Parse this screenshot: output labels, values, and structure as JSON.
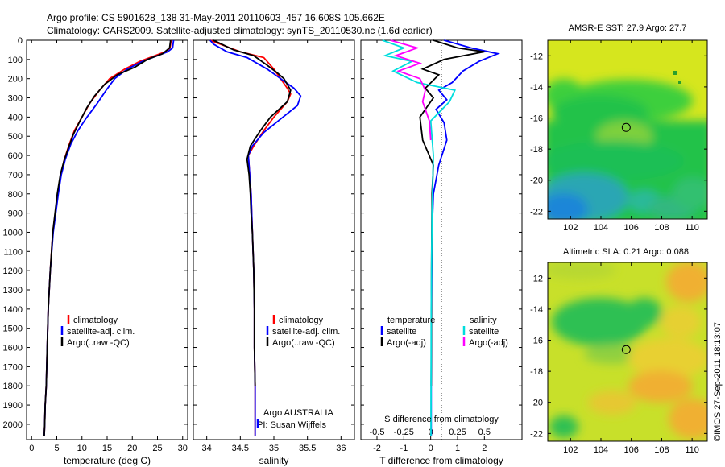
{
  "header": {
    "line1": "Argo profile: CS 5901628_138 31-May-2011 20110603_457 16.608S 105.662E",
    "line2": "Climatology: CARS2009. Satellite-adjusted climatology: synTS_20110530.nc (1.6d earlier)"
  },
  "depth_ticks": [
    "0",
    "100",
    "200",
    "300",
    "400",
    "500",
    "600",
    "700",
    "800",
    "900",
    "1000",
    "1100",
    "1200",
    "1300",
    "1400",
    "1500",
    "1600",
    "1700",
    "1800",
    "1900",
    "2000"
  ],
  "colors": {
    "climatology": "#ff0000",
    "satellite": "#0000ff",
    "argo": "#000000",
    "sal_sat": "#00dddd",
    "sal_argo": "#ff00ff"
  },
  "legend": {
    "climatology": "climatology",
    "satellite": "satellite-adj. clim.",
    "argo": "Argo(..raw -QC)",
    "temperature": "temperature",
    "salinity": "salinity",
    "sat": "satellite",
    "argo_adj": "Argo(-adj)"
  },
  "credit": {
    "line1": "Argo AUSTRALIA",
    "line2": "PI: Susan Wijffels"
  },
  "watermark": "©IMOS 27-Sep-2011 18:13:07",
  "chart_data": [
    {
      "type": "line",
      "id": "temperature",
      "xlabel": "temperature (deg C)",
      "ylabel": "",
      "xlim": [
        -1,
        31
      ],
      "ylim": [
        2080,
        0
      ],
      "xticks": [
        "0",
        "5",
        "10",
        "15",
        "20",
        "25",
        "30"
      ],
      "series": [
        {
          "name": "climatology",
          "color": "#ff0000",
          "x": [
            27.7,
            27.5,
            26.5,
            24.5,
            21.5,
            18.5,
            15.5,
            13.5,
            11.5,
            10,
            8.5,
            7.5,
            6.5,
            5.8,
            5.2,
            4.2,
            3.7,
            3.3,
            3.1,
            2.9,
            2.7,
            2.6,
            2.5
          ],
          "y": [
            0,
            40,
            60,
            80,
            110,
            150,
            200,
            260,
            330,
            400,
            470,
            540,
            620,
            700,
            800,
            1000,
            1200,
            1400,
            1600,
            1800,
            1900,
            2000,
            2060
          ]
        },
        {
          "name": "satellite-adj. clim.",
          "color": "#0000ff",
          "x": [
            28.2,
            28,
            27,
            25,
            22,
            19,
            16.5,
            14.8,
            13,
            11,
            9.2,
            7.8,
            6.7,
            5.9,
            5.3,
            4.3,
            3.7,
            3.3,
            3.1,
            2.9,
            2.7,
            2.6,
            2.5
          ],
          "y": [
            0,
            40,
            60,
            80,
            110,
            150,
            200,
            260,
            330,
            400,
            470,
            540,
            620,
            700,
            800,
            1000,
            1200,
            1400,
            1600,
            1800,
            1900,
            2000,
            2060
          ]
        },
        {
          "name": "Argo(..raw -QC)",
          "color": "#000000",
          "x": [
            27.6,
            27.4,
            26,
            23,
            20.5,
            17,
            14.5,
            12.5,
            11,
            9.6,
            8.3,
            7.3,
            6.4,
            5.7,
            5.1,
            4.2,
            3.7,
            3.3,
            3.1,
            2.9,
            2.7,
            2.6,
            2.5
          ],
          "y": [
            0,
            40,
            70,
            100,
            140,
            180,
            230,
            290,
            350,
            420,
            490,
            560,
            630,
            700,
            800,
            1000,
            1200,
            1400,
            1600,
            1800,
            1900,
            2000,
            2060
          ]
        }
      ]
    },
    {
      "type": "line",
      "id": "salinity",
      "xlabel": "salinity",
      "ylabel": "",
      "xlim": [
        33.8,
        36.2
      ],
      "ylim": [
        2080,
        0
      ],
      "xticks": [
        "34",
        "34.5",
        "35",
        "35.5",
        "36"
      ],
      "series": [
        {
          "name": "climatology",
          "color": "#ff0000",
          "x": [
            34.05,
            34.2,
            34.5,
            34.85,
            35.0,
            35.1,
            35.2,
            35.25,
            35.2,
            35.0,
            34.85,
            34.7,
            34.62,
            34.64,
            34.66,
            34.68,
            34.7,
            34.71,
            34.71,
            34.72,
            34.72,
            34.72
          ],
          "y": [
            0,
            20,
            60,
            90,
            150,
            200,
            250,
            280,
            320,
            400,
            470,
            550,
            600,
            700,
            800,
            1000,
            1200,
            1400,
            1600,
            1800,
            2000,
            2060
          ]
        },
        {
          "name": "satellite-adj. clim.",
          "color": "#0000ff",
          "x": [
            34.05,
            34.1,
            34.3,
            34.6,
            34.9,
            35.1,
            35.3,
            35.4,
            35.35,
            35.1,
            34.85,
            34.68,
            34.62,
            34.64,
            34.66,
            34.68,
            34.7,
            34.71,
            34.71,
            34.72,
            34.72,
            34.72
          ],
          "y": [
            0,
            20,
            60,
            90,
            150,
            200,
            250,
            290,
            340,
            410,
            480,
            550,
            600,
            700,
            800,
            1000,
            1200,
            1400,
            1600,
            1800,
            2000,
            2060
          ]
        },
        {
          "name": "Argo(..raw -QC)",
          "color": "#000000",
          "x": [
            34.1,
            34.4,
            34.7,
            34.9,
            35.05,
            35.15,
            35.25,
            35.2,
            34.95,
            34.8,
            34.65,
            34.6,
            34.63,
            34.65,
            34.66,
            34.68,
            34.7,
            34.71,
            34.71,
            34.72
          ],
          "y": [
            0,
            50,
            80,
            130,
            170,
            200,
            260,
            320,
            400,
            470,
            550,
            620,
            700,
            800,
            900,
            1000,
            1200,
            1400,
            1600,
            1800
          ]
        }
      ]
    },
    {
      "type": "line",
      "id": "difference",
      "xlabel": "T difference from climatology",
      "ylabel": "",
      "xlim": [
        -2.6,
        3.4
      ],
      "ylim": [
        2080,
        0
      ],
      "xticks": [
        "-2",
        "-1",
        "0",
        "1",
        "2"
      ],
      "top_xlabel": "S difference from climatology",
      "top_xticks": [
        "-0.5",
        "-0.25",
        "0",
        "0.25",
        "0.5"
      ],
      "series": [
        {
          "name": "temperature satellite",
          "color": "#0000ff",
          "x": [
            0.5,
            1.5,
            2.5,
            1.8,
            1.2,
            0.8,
            0.3,
            0.6,
            0.2,
            0.5,
            0.6,
            0.3,
            0.1,
            0.05,
            0.03,
            0.02,
            0.02
          ],
          "y": [
            0,
            40,
            70,
            110,
            160,
            220,
            260,
            310,
            360,
            430,
            520,
            650,
            800,
            1000,
            1400,
            1800,
            2060
          ]
        },
        {
          "name": "temperature Argo(-adj)",
          "color": "#000000",
          "x": [
            0.1,
            1.0,
            2.0,
            0.5,
            -0.3,
            0.3,
            -0.2,
            0.1,
            -0.4,
            -0.3,
            0.1,
            0.05,
            0.03,
            0.02
          ],
          "y": [
            0,
            40,
            60,
            100,
            150,
            180,
            250,
            300,
            400,
            520,
            650,
            800,
            1200,
            1800
          ]
        },
        {
          "name": "salinity satellite",
          "color": "#00dddd",
          "x": [
            -1.8,
            -1.0,
            -1.7,
            -0.7,
            -1.4,
            -0.5,
            0.9,
            0.7,
            0.0,
            0.1,
            0.05,
            0.02,
            0.01
          ],
          "y": [
            0,
            40,
            80,
            110,
            160,
            220,
            260,
            320,
            420,
            600,
            900,
            1400,
            2060
          ]
        },
        {
          "name": "salinity Argo(-adj)",
          "color": "#ff00ff",
          "x": [
            -1.5,
            -0.5,
            -1.3,
            -0.4,
            -1.2,
            -0.4,
            -0.2,
            -0.3,
            -0.05,
            0.0
          ],
          "y": [
            0,
            40,
            80,
            120,
            160,
            200,
            260,
            320,
            420,
            520
          ]
        }
      ]
    },
    {
      "type": "heatmap",
      "id": "sst_map",
      "title": "AMSR-E SST: 27.9 Argo: 27.7",
      "xlim": [
        100.5,
        111
      ],
      "ylim": [
        -22.5,
        -11
      ],
      "xticks": [
        "102",
        "104",
        "106",
        "108",
        "110"
      ],
      "yticks": [
        "-12",
        "-14",
        "-16",
        "-18",
        "-20",
        "-22"
      ],
      "marker": {
        "lon": 105.662,
        "lat": -16.608
      }
    },
    {
      "type": "heatmap",
      "id": "sla_map",
      "title": "Altimetric SLA: 0.21 Argo: 0.088",
      "xlim": [
        100.5,
        111
      ],
      "ylim": [
        -22.5,
        -11
      ],
      "xticks": [
        "102",
        "104",
        "106",
        "108",
        "110"
      ],
      "yticks": [
        "-12",
        "-14",
        "-16",
        "-18",
        "-20",
        "-22"
      ],
      "marker": {
        "lon": 105.662,
        "lat": -16.608
      }
    }
  ]
}
